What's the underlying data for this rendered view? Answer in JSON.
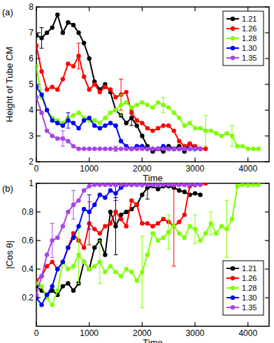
{
  "chart_data": [
    {
      "type": "line",
      "title": "(a)",
      "x_label": "Time",
      "y_label": "Height of Tube CM",
      "x": [
        0,
        100,
        200,
        300,
        400,
        500,
        600,
        700,
        800,
        900,
        1000,
        1100,
        1200,
        1300,
        1400,
        1500,
        1600,
        1700,
        1800,
        1900,
        2000,
        2100,
        2200,
        2300,
        2400,
        2500,
        2600,
        2700,
        2800,
        2900,
        3000,
        3100,
        3200,
        3300,
        3400,
        3500,
        3600,
        3700,
        3800,
        3900,
        4000,
        4100,
        4200
      ],
      "xlim": [
        0,
        4400
      ],
      "xticks": [
        0,
        1000,
        2000,
        3000,
        4000
      ],
      "ylim": [
        2,
        8
      ],
      "yticks": [
        2,
        3,
        4,
        5,
        6,
        7,
        8
      ],
      "grid": false,
      "legend": "upper right",
      "marker": "circle",
      "line_style": "solid",
      "series": [
        {
          "name": "1.21",
          "color": "#000000",
          "values": [
            6.9,
            6.8,
            7.0,
            7.2,
            7.7,
            7.0,
            7.4,
            7.3,
            7.0,
            6.6,
            6.0,
            5.1,
            4.8,
            5.0,
            4.7,
            4.0,
            3.8,
            3.5,
            3.7,
            3.4,
            3.0,
            2.6,
            2.4,
            2.5,
            2.4,
            2.6,
            2.5,
            2.6,
            2.4,
            2.7,
            2.5,
            2.5,
            null,
            null,
            null,
            null,
            null,
            null,
            null,
            null,
            null,
            null,
            null
          ],
          "errors": [
            null,
            0.4,
            null,
            null,
            null,
            null,
            null,
            null,
            null,
            null,
            null,
            null,
            null,
            null,
            null,
            null,
            null,
            null,
            0.3,
            null,
            null,
            null,
            null,
            null,
            null,
            null,
            null,
            null,
            null,
            null,
            null,
            null,
            null,
            null,
            null,
            null,
            null,
            null,
            null,
            null,
            null,
            null,
            null
          ]
        },
        {
          "name": "1.26",
          "color": "#ff0000",
          "values": [
            6.5,
            5.5,
            4.8,
            4.9,
            4.8,
            5.2,
            5.8,
            5.7,
            6.1,
            5.3,
            4.8,
            5.0,
            4.7,
            4.9,
            4.8,
            4.5,
            4.6,
            4.7,
            3.9,
            3.6,
            3.5,
            3.3,
            3.2,
            3.3,
            3.4,
            3.4,
            3.2,
            2.8,
            2.6,
            2.7,
            2.6,
            2.5,
            2.5,
            null,
            null,
            null,
            null,
            null,
            null,
            null,
            null,
            null,
            null
          ],
          "errors": [
            null,
            null,
            null,
            null,
            null,
            null,
            null,
            null,
            0.5,
            null,
            null,
            null,
            null,
            null,
            null,
            null,
            0.6,
            null,
            null,
            null,
            null,
            null,
            null,
            null,
            null,
            null,
            null,
            null,
            null,
            null,
            null,
            null,
            null,
            null,
            null,
            null,
            null,
            null,
            null,
            null,
            null,
            null,
            null
          ]
        },
        {
          "name": "1.28",
          "color": "#7fff00",
          "values": [
            5.7,
            4.5,
            4.0,
            3.7,
            3.6,
            3.5,
            3.7,
            3.8,
            3.9,
            3.7,
            3.6,
            3.6,
            3.5,
            3.7,
            3.9,
            4.0,
            4.2,
            4.3,
            4.1,
            4.2,
            4.3,
            4.2,
            4.1,
            4.3,
            4.2,
            4.1,
            3.9,
            3.7,
            3.4,
            3.5,
            3.3,
            3.3,
            3.2,
            3.2,
            3.1,
            3.0,
            3.1,
            3.0,
            2.6,
            2.6,
            2.5,
            2.5,
            2.5
          ],
          "errors": [
            null,
            null,
            null,
            null,
            null,
            null,
            null,
            null,
            null,
            null,
            null,
            null,
            null,
            null,
            null,
            null,
            0.4,
            null,
            null,
            null,
            null,
            null,
            null,
            null,
            0.3,
            null,
            null,
            null,
            null,
            null,
            null,
            null,
            0.6,
            null,
            null,
            null,
            null,
            0.4,
            null,
            null,
            null,
            null,
            null
          ]
        },
        {
          "name": "1.30",
          "color": "#0000ff",
          "values": [
            4.9,
            4.6,
            4.0,
            3.6,
            3.5,
            3.4,
            3.6,
            3.5,
            3.3,
            3.6,
            3.7,
            3.4,
            3.3,
            3.4,
            3.5,
            3.4,
            2.8,
            2.6,
            2.5,
            2.6,
            2.6,
            2.5,
            2.5,
            2.5,
            2.6,
            2.5,
            2.5,
            2.5,
            2.5,
            2.5,
            2.5,
            null,
            null,
            null,
            null,
            null,
            null,
            null,
            null,
            null,
            null,
            null,
            null
          ],
          "errors": [
            null,
            null,
            null,
            null,
            null,
            null,
            0.3,
            null,
            null,
            null,
            null,
            null,
            null,
            null,
            null,
            null,
            null,
            null,
            null,
            null,
            null,
            null,
            null,
            null,
            null,
            null,
            null,
            null,
            null,
            null,
            null,
            null,
            null,
            null,
            null,
            null,
            null,
            null,
            null,
            null,
            null,
            null,
            null
          ]
        },
        {
          "name": "1.35",
          "color": "#a945e8",
          "values": [
            4.5,
            3.9,
            3.2,
            3.0,
            2.9,
            2.9,
            2.8,
            2.6,
            2.5,
            2.5,
            2.5,
            2.5,
            2.5,
            2.5,
            2.5,
            2.5,
            2.5,
            2.5,
            2.5,
            2.5,
            2.5,
            2.5,
            2.5,
            2.5,
            2.5,
            2.5,
            2.5,
            2.5,
            2.5,
            2.5,
            2.5,
            2.5,
            null,
            null,
            null,
            null,
            null,
            null,
            null,
            null,
            null,
            null,
            null
          ],
          "errors": [
            null,
            null,
            null,
            null,
            null,
            0.3,
            null,
            null,
            null,
            null,
            null,
            null,
            null,
            null,
            null,
            0.1,
            null,
            null,
            null,
            null,
            null,
            null,
            null,
            null,
            null,
            null,
            null,
            null,
            null,
            null,
            null,
            null,
            null,
            null,
            null,
            null,
            null,
            null,
            null,
            null,
            null,
            null,
            null
          ]
        }
      ]
    },
    {
      "type": "line",
      "title": "(b)",
      "x_label": "Time",
      "y_label": "|Cos θ|",
      "x": [
        0,
        100,
        200,
        300,
        400,
        500,
        600,
        700,
        800,
        900,
        1000,
        1100,
        1200,
        1300,
        1400,
        1500,
        1600,
        1700,
        1800,
        1900,
        2000,
        2100,
        2200,
        2300,
        2400,
        2500,
        2600,
        2700,
        2800,
        2900,
        3000,
        3100,
        3200,
        3300,
        3400,
        3500,
        3600,
        3700,
        3800,
        3900,
        4000,
        4100,
        4200
      ],
      "xlim": [
        0,
        4400
      ],
      "xticks": [
        0,
        1000,
        2000,
        3000,
        4000
      ],
      "ylim": [
        0,
        1
      ],
      "yticks": [
        0.2,
        0.4,
        0.6,
        0.8,
        1
      ],
      "grid": false,
      "legend": "lower right",
      "marker": "circle",
      "line_style": "solid",
      "series": [
        {
          "name": "1.21",
          "color": "#000000",
          "values": [
            0.28,
            0.25,
            0.22,
            0.25,
            0.22,
            0.28,
            0.3,
            0.25,
            0.3,
            0.45,
            0.4,
            0.55,
            0.6,
            0.5,
            0.8,
            0.7,
            0.78,
            0.8,
            0.82,
            0.85,
            0.92,
            0.97,
            0.98,
            0.96,
            0.98,
            0.98,
            0.97,
            0.95,
            0.94,
            0.92,
            0.93,
            0.92,
            null,
            null,
            null,
            null,
            null,
            null,
            null,
            null,
            null,
            null,
            null
          ],
          "errors": [
            null,
            null,
            null,
            null,
            null,
            null,
            null,
            null,
            null,
            null,
            null,
            null,
            null,
            null,
            null,
            0.2,
            null,
            null,
            null,
            null,
            null,
            0.08,
            null,
            null,
            null,
            null,
            null,
            null,
            null,
            null,
            null,
            null,
            null,
            null,
            null,
            null,
            null,
            null,
            null,
            null,
            null,
            null,
            null
          ]
        },
        {
          "name": "1.26",
          "color": "#ff0000",
          "values": [
            0.32,
            0.35,
            0.42,
            0.45,
            0.4,
            0.45,
            0.55,
            0.65,
            0.6,
            0.55,
            0.72,
            0.68,
            0.65,
            0.7,
            0.72,
            0.8,
            0.75,
            0.7,
            0.88,
            0.85,
            0.72,
            0.72,
            0.7,
            0.72,
            0.75,
            0.73,
            0.7,
            0.73,
            0.78,
            0.98,
            0.99,
            0.99,
            1.0,
            null,
            null,
            null,
            null,
            null,
            null,
            null,
            null,
            null,
            null
          ],
          "errors": [
            null,
            null,
            null,
            null,
            null,
            null,
            null,
            null,
            null,
            null,
            0.15,
            null,
            null,
            null,
            null,
            null,
            null,
            null,
            null,
            null,
            null,
            null,
            null,
            null,
            null,
            null,
            0.28,
            null,
            null,
            null,
            null,
            null,
            null,
            null,
            null,
            null,
            null,
            null,
            null,
            null,
            null,
            null,
            null
          ]
        },
        {
          "name": "1.28",
          "color": "#7fff00",
          "values": [
            0.3,
            0.28,
            0.2,
            0.15,
            0.25,
            0.45,
            0.4,
            0.42,
            0.5,
            0.45,
            0.4,
            0.42,
            0.45,
            0.38,
            0.42,
            0.38,
            0.35,
            0.4,
            0.38,
            0.32,
            0.38,
            0.5,
            0.65,
            0.6,
            0.62,
            0.66,
            0.7,
            0.65,
            0.62,
            0.7,
            0.68,
            0.6,
            0.65,
            0.72,
            0.65,
            0.7,
            0.68,
            0.75,
            0.98,
            0.99,
            0.99,
            0.99,
            0.99
          ],
          "errors": [
            null,
            null,
            null,
            null,
            null,
            null,
            null,
            null,
            0.2,
            null,
            null,
            null,
            0.15,
            null,
            null,
            null,
            null,
            null,
            null,
            null,
            0.25,
            null,
            null,
            null,
            null,
            0.12,
            null,
            null,
            null,
            null,
            0.1,
            null,
            null,
            0.08,
            null,
            null,
            0.2,
            null,
            null,
            null,
            null,
            null,
            null
          ]
        },
        {
          "name": "1.30",
          "color": "#0000ff",
          "values": [
            0.2,
            0.15,
            0.22,
            0.28,
            0.4,
            0.45,
            0.55,
            0.62,
            0.7,
            0.82,
            0.8,
            0.85,
            0.92,
            0.9,
            0.95,
            0.93,
            0.97,
            0.99,
            0.99,
            0.99,
            0.99,
            0.99,
            0.99,
            0.99,
            0.99,
            0.99,
            0.99,
            0.99,
            0.99,
            0.99,
            0.99,
            null,
            null,
            null,
            null,
            null,
            null,
            null,
            null,
            null,
            null,
            null,
            null
          ],
          "errors": [
            null,
            null,
            null,
            null,
            null,
            null,
            null,
            null,
            null,
            null,
            0.12,
            null,
            null,
            null,
            null,
            0.05,
            null,
            null,
            null,
            null,
            null,
            null,
            null,
            null,
            null,
            null,
            null,
            null,
            null,
            null,
            null,
            null,
            null,
            null,
            null,
            null,
            null,
            null,
            null,
            null,
            null,
            null,
            null
          ]
        },
        {
          "name": "1.35",
          "color": "#a945e8",
          "values": [
            0.22,
            0.35,
            0.5,
            0.6,
            0.62,
            0.7,
            0.8,
            0.85,
            0.88,
            0.95,
            0.98,
            0.99,
            0.99,
            0.99,
            0.99,
            0.99,
            0.99,
            0.99,
            0.99,
            0.99,
            0.99,
            0.99,
            0.99,
            0.99,
            0.99,
            0.99,
            0.99,
            0.99,
            0.99,
            0.99,
            0.99,
            0.99,
            null,
            null,
            null,
            null,
            null,
            null,
            null,
            null,
            null,
            null,
            null
          ],
          "errors": [
            null,
            null,
            null,
            0.12,
            null,
            null,
            null,
            0.1,
            null,
            null,
            null,
            null,
            null,
            null,
            null,
            null,
            null,
            null,
            null,
            null,
            null,
            null,
            null,
            null,
            null,
            null,
            null,
            null,
            null,
            null,
            null,
            null,
            null,
            null,
            null,
            null,
            null,
            null,
            null,
            null,
            null,
            null,
            null
          ]
        }
      ]
    }
  ]
}
